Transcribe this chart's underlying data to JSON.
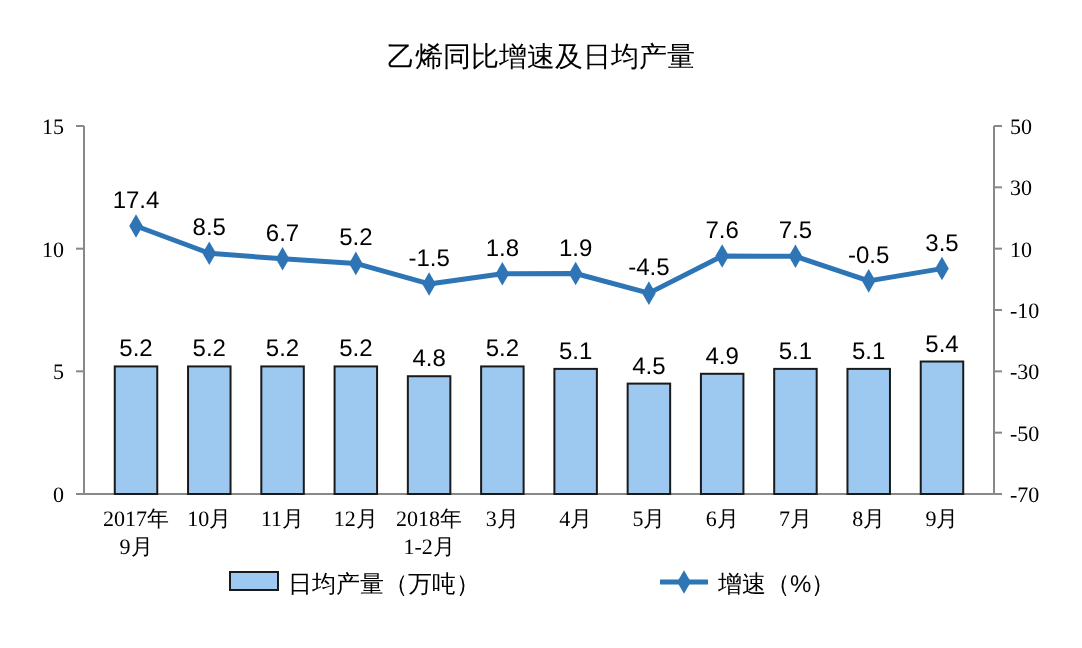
{
  "chart_data": {
    "type": "bar",
    "title": "乙烯同比增速及日均产量",
    "categories": [
      "2017年\n9月",
      "10月",
      "11月",
      "12月",
      "2018年\n1-2月",
      "3月",
      "4月",
      "5月",
      "6月",
      "7月",
      "8月",
      "9月"
    ],
    "series": [
      {
        "name": "日均产量（万吨）",
        "color": "#9dc8f0",
        "values": [
          5.2,
          5.2,
          5.2,
          5.2,
          4.8,
          5.2,
          5.1,
          4.5,
          4.9,
          5.1,
          5.1,
          5.4
        ]
      },
      {
        "name": "增速（%）",
        "type": "line",
        "axis": "y2",
        "color": "#2e75b6",
        "marker": "diamond",
        "values": [
          17.4,
          8.5,
          6.7,
          5.2,
          -1.5,
          1.8,
          1.9,
          -4.5,
          7.6,
          7.5,
          -0.5,
          3.5
        ]
      }
    ],
    "ylim": [
      0,
      15
    ],
    "yticks": [
      0,
      5,
      10,
      15
    ],
    "y2lim": [
      -70,
      50
    ],
    "y2ticks": [
      -70,
      -50,
      -30,
      -10,
      10,
      30,
      50
    ],
    "data_labels": true,
    "grid": false,
    "legend": "bottom"
  }
}
